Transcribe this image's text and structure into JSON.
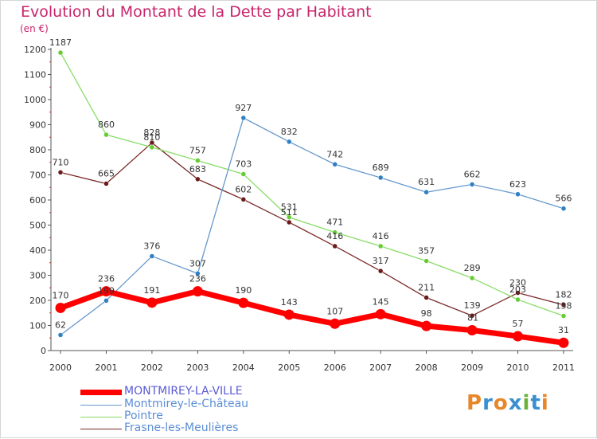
{
  "title": "Evolution du Montant de la Dette par Habitant",
  "unit": "(en €)",
  "logo": {
    "text": "Proxiti",
    "colors": [
      "#e8862a",
      "#3a8fd0",
      "#e8862a",
      "#3a8fd0",
      "#6ab03a",
      "#3a8fd0",
      "#e8862a"
    ]
  },
  "chart_data": {
    "type": "line",
    "title": "Evolution du Montant de la Dette par Habitant",
    "ylabel": "(en €)",
    "xlabel": "",
    "x": [
      "2000",
      "2001",
      "2002",
      "2003",
      "2004",
      "2005",
      "2006",
      "2007",
      "2008",
      "2009",
      "2010",
      "2011"
    ],
    "ylim": [
      0,
      1200
    ],
    "yticks": [
      0,
      100,
      200,
      300,
      400,
      500,
      600,
      700,
      800,
      900,
      1000,
      1100,
      1200
    ],
    "grid": false,
    "legend_position": "bottom-left",
    "series": [
      {
        "name": "MONTMIREY-LA-VILLE",
        "color": "#ff0000",
        "point_color": "#ff0000",
        "legend_text_color": "#5b5bd6",
        "thick": true,
        "values": [
          170,
          236,
          191,
          236,
          190,
          143,
          107,
          145,
          98,
          81,
          57,
          31
        ],
        "labels": [
          "170",
          "236",
          "191",
          "236",
          "190",
          "143",
          "107",
          "145",
          "98",
          "",
          "57",
          "31"
        ]
      },
      {
        "name": "Montmirey-le-Château",
        "color": "#6699cc",
        "point_color": "#2e7fc4",
        "legend_text_color": "#5b8ed6",
        "thick": false,
        "values": [
          62,
          199,
          376,
          307,
          927,
          832,
          742,
          689,
          631,
          662,
          623,
          566
        ],
        "labels": [
          "62",
          "199",
          "376",
          "307",
          "927",
          "832",
          "742",
          "689",
          "631",
          "662",
          "623",
          "566"
        ]
      },
      {
        "name": "Pointre",
        "color": "#88dd66",
        "point_color": "#66cc33",
        "legend_text_color": "#55bb44",
        "thick": false,
        "values": [
          1187,
          860,
          810,
          757,
          703,
          531,
          471,
          416,
          357,
          289,
          203,
          138
        ],
        "labels": [
          "1187",
          "860",
          "810",
          "757",
          "703",
          "531",
          "471",
          "416",
          "357",
          "289",
          "203",
          "138"
        ]
      },
      {
        "name": "Frasne-les-Meulières",
        "color": "#7a2a2a",
        "point_color": "#6b1a1a",
        "legend_text_color": "#5b8ed6",
        "thick": false,
        "values": [
          710,
          665,
          828,
          683,
          602,
          511,
          416,
          317,
          211,
          139,
          230,
          182
        ],
        "labels": [
          "710",
          "665",
          "828",
          "683",
          "602",
          "511",
          "416",
          "317",
          "211",
          "139",
          "230",
          "182"
        ]
      }
    ],
    "extra_labels": [
      {
        "series": 0,
        "index": 9,
        "text": "81"
      }
    ]
  }
}
